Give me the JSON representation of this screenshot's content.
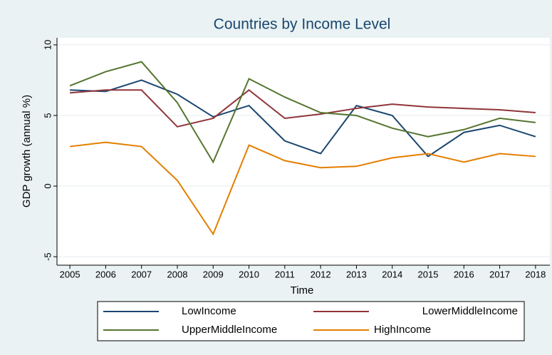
{
  "chart_data": {
    "type": "line",
    "title": "Countries by Income Level",
    "x_label": "Time",
    "y_label": "GDP growth (annual %)",
    "x": [
      2005,
      2006,
      2007,
      2008,
      2009,
      2010,
      2011,
      2012,
      2013,
      2014,
      2015,
      2016,
      2017,
      2018
    ],
    "series": [
      {
        "name": "LowIncome",
        "color": "#1a476f",
        "values": [
          6.8,
          6.7,
          7.5,
          6.5,
          4.9,
          5.7,
          3.2,
          2.3,
          5.7,
          5.0,
          2.1,
          3.8,
          4.3,
          3.5
        ]
      },
      {
        "name": "LowerMiddleIncome",
        "color": "#90353b",
        "values": [
          6.6,
          6.8,
          6.8,
          4.2,
          4.8,
          6.8,
          4.8,
          5.1,
          5.5,
          5.8,
          5.6,
          5.5,
          5.4,
          5.2
        ]
      },
      {
        "name": "UpperMiddleIncome",
        "color": "#55752f",
        "values": [
          7.1,
          8.1,
          8.8,
          5.9,
          1.7,
          7.6,
          6.3,
          5.2,
          5.0,
          4.1,
          3.5,
          4.0,
          4.8,
          4.5
        ]
      },
      {
        "name": "HighIncome",
        "color": "#e37e00",
        "values": [
          2.8,
          3.1,
          2.8,
          0.4,
          -3.4,
          2.9,
          1.8,
          1.3,
          1.4,
          2.0,
          2.3,
          1.7,
          2.3,
          2.1
        ]
      }
    ],
    "xlim": [
      2004.64,
      2018.4
    ],
    "xticks": [
      2005,
      2006,
      2007,
      2008,
      2009,
      2010,
      2011,
      2012,
      2013,
      2014,
      2015,
      2016,
      2017,
      2018
    ],
    "ylim": [
      -5.6,
      10.5
    ],
    "yticks": [
      -5,
      0,
      5,
      10
    ],
    "grid": true,
    "legend": "bottom"
  }
}
